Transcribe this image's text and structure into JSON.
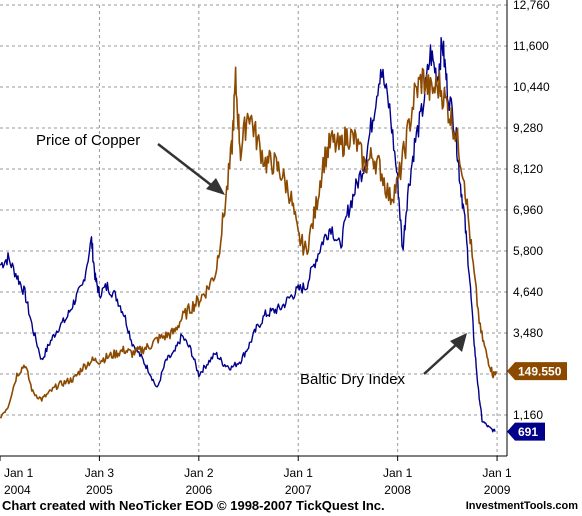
{
  "chart_data": {
    "type": "line",
    "y_ticks": [
      "1,160",
      "2,320",
      "3,480",
      "4,640",
      "5,800",
      "6,960",
      "8,120",
      "9,280",
      "10,440",
      "11,600",
      "12,760"
    ],
    "y_tick_values": [
      1160,
      2320,
      3480,
      4640,
      5800,
      6960,
      8120,
      9280,
      10440,
      11600,
      12760
    ],
    "ylim": [
      0,
      12760
    ],
    "x_ticks": [
      {
        "line1": "Jan 1",
        "line2": "2004",
        "t": 2004.0
      },
      {
        "line1": "Jan 3",
        "line2": "2005",
        "t": 2005.0
      },
      {
        "line1": "Jan 2",
        "line2": "2006",
        "t": 2006.0
      },
      {
        "line1": "Jan 1",
        "line2": "2007",
        "t": 2007.0
      },
      {
        "line1": "Jan 1",
        "line2": "2008",
        "t": 2008.0
      },
      {
        "line1": "Jan 1",
        "line2": "2009",
        "t": 2009.0
      }
    ],
    "xlim": [
      2004.0,
      2009.1
    ],
    "grid": true,
    "series": [
      {
        "name": "Baltic Dry Index",
        "color": "#00008b",
        "last_value": "691",
        "points": [
          [
            2004.0,
            5400
          ],
          [
            2004.08,
            5600
          ],
          [
            2004.17,
            5100
          ],
          [
            2004.25,
            4600
          ],
          [
            2004.33,
            3600
          ],
          [
            2004.42,
            2700
          ],
          [
            2004.5,
            3200
          ],
          [
            2004.58,
            3600
          ],
          [
            2004.67,
            3900
          ],
          [
            2004.75,
            4400
          ],
          [
            2004.83,
            4800
          ],
          [
            2004.92,
            6100
          ],
          [
            2004.96,
            5000
          ],
          [
            2005.0,
            4600
          ],
          [
            2005.08,
            4800
          ],
          [
            2005.17,
            4500
          ],
          [
            2005.25,
            4000
          ],
          [
            2005.33,
            3200
          ],
          [
            2005.42,
            2800
          ],
          [
            2005.5,
            2400
          ],
          [
            2005.58,
            1900
          ],
          [
            2005.67,
            2700
          ],
          [
            2005.75,
            2900
          ],
          [
            2005.83,
            3400
          ],
          [
            2005.92,
            3000
          ],
          [
            2006.0,
            2300
          ],
          [
            2006.08,
            2600
          ],
          [
            2006.17,
            2900
          ],
          [
            2006.25,
            2600
          ],
          [
            2006.33,
            2500
          ],
          [
            2006.42,
            2700
          ],
          [
            2006.5,
            3100
          ],
          [
            2006.58,
            3600
          ],
          [
            2006.67,
            4000
          ],
          [
            2006.75,
            4100
          ],
          [
            2006.83,
            4200
          ],
          [
            2006.92,
            4500
          ],
          [
            2007.0,
            4700
          ],
          [
            2007.08,
            4800
          ],
          [
            2007.17,
            5500
          ],
          [
            2007.25,
            6100
          ],
          [
            2007.33,
            6500
          ],
          [
            2007.42,
            5900
          ],
          [
            2007.5,
            6900
          ],
          [
            2007.58,
            7600
          ],
          [
            2007.67,
            8300
          ],
          [
            2007.75,
            9600
          ],
          [
            2007.83,
            11000
          ],
          [
            2007.92,
            9800
          ],
          [
            2008.0,
            7800
          ],
          [
            2008.05,
            5800
          ],
          [
            2008.1,
            7400
          ],
          [
            2008.17,
            8800
          ],
          [
            2008.25,
            9800
          ],
          [
            2008.33,
            11400
          ],
          [
            2008.4,
            10700
          ],
          [
            2008.45,
            11700
          ],
          [
            2008.5,
            10400
          ],
          [
            2008.58,
            9300
          ],
          [
            2008.62,
            8000
          ],
          [
            2008.67,
            6800
          ],
          [
            2008.72,
            5200
          ],
          [
            2008.77,
            3200
          ],
          [
            2008.81,
            1900
          ],
          [
            2008.85,
            1000
          ],
          [
            2008.92,
            800
          ],
          [
            2008.98,
            691
          ]
        ]
      },
      {
        "name": "Price of Copper",
        "color": "#8b4a00",
        "last_value": "149.550",
        "points": [
          [
            2004.0,
            1100
          ],
          [
            2004.08,
            1400
          ],
          [
            2004.17,
            2300
          ],
          [
            2004.25,
            2600
          ],
          [
            2004.33,
            1800
          ],
          [
            2004.42,
            1600
          ],
          [
            2004.5,
            1800
          ],
          [
            2004.58,
            2000
          ],
          [
            2004.67,
            2100
          ],
          [
            2004.75,
            2200
          ],
          [
            2004.83,
            2500
          ],
          [
            2004.92,
            2700
          ],
          [
            2005.0,
            2700
          ],
          [
            2005.08,
            2800
          ],
          [
            2005.17,
            2900
          ],
          [
            2005.25,
            3000
          ],
          [
            2005.33,
            2900
          ],
          [
            2005.42,
            3000
          ],
          [
            2005.5,
            3100
          ],
          [
            2005.58,
            3300
          ],
          [
            2005.67,
            3400
          ],
          [
            2005.75,
            3500
          ],
          [
            2005.83,
            3900
          ],
          [
            2005.92,
            4200
          ],
          [
            2006.0,
            4400
          ],
          [
            2006.08,
            4700
          ],
          [
            2006.17,
            5200
          ],
          [
            2006.25,
            6800
          ],
          [
            2006.33,
            8600
          ],
          [
            2006.37,
            10600
          ],
          [
            2006.42,
            8600
          ],
          [
            2006.5,
            9800
          ],
          [
            2006.58,
            9000
          ],
          [
            2006.67,
            8300
          ],
          [
            2006.75,
            8300
          ],
          [
            2006.83,
            8000
          ],
          [
            2006.92,
            7400
          ],
          [
            2007.0,
            6200
          ],
          [
            2007.08,
            5800
          ],
          [
            2007.17,
            6900
          ],
          [
            2007.25,
            8300
          ],
          [
            2007.33,
            8900
          ],
          [
            2007.42,
            8700
          ],
          [
            2007.5,
            9100
          ],
          [
            2007.58,
            8900
          ],
          [
            2007.67,
            8200
          ],
          [
            2007.75,
            8500
          ],
          [
            2007.83,
            8100
          ],
          [
            2007.92,
            7300
          ],
          [
            2008.0,
            7700
          ],
          [
            2008.08,
            8800
          ],
          [
            2008.17,
            10200
          ],
          [
            2008.25,
            10700
          ],
          [
            2008.33,
            10300
          ],
          [
            2008.42,
            10500
          ],
          [
            2008.5,
            9900
          ],
          [
            2008.58,
            9200
          ],
          [
            2008.67,
            7900
          ],
          [
            2008.75,
            5600
          ],
          [
            2008.83,
            3600
          ],
          [
            2008.9,
            2800
          ],
          [
            2008.96,
            2300
          ],
          [
            2008.99,
            2400
          ]
        ]
      }
    ],
    "annotations": [
      {
        "text": "Price of Copper",
        "target_series": "Price of Copper"
      },
      {
        "text": "Baltic Dry Index",
        "target_series": "Baltic Dry Index"
      }
    ]
  },
  "footer": {
    "credit": "Chart created with NeoTicker EOD © 1998-2007 TickQuest Inc.",
    "site": "InvestmentTools.com"
  }
}
